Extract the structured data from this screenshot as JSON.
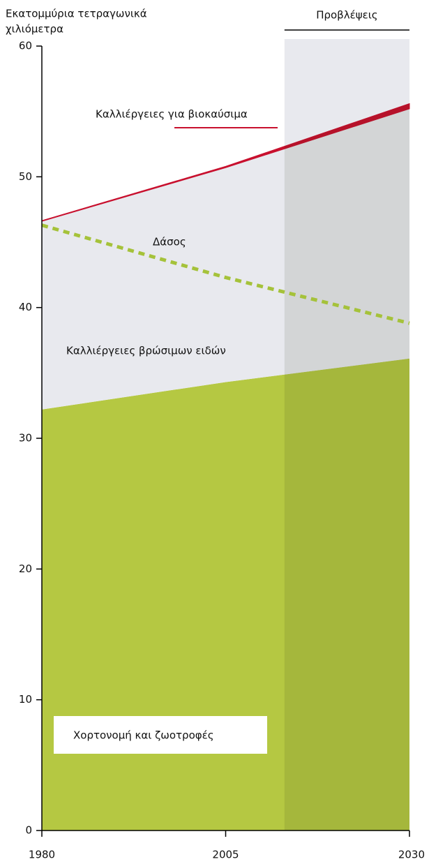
{
  "chart_data": {
    "type": "stacked_area",
    "y_label": [
      "Εκατομμύρια τετραγωνικά",
      "χιλιόμετρα"
    ],
    "projection_label": "Προβλέψεις",
    "projection_start": 2013,
    "x": [
      1980,
      2005,
      2030
    ],
    "series": [
      {
        "name": "Χορτονομή και ζωοτροφές",
        "color": "#b5c842",
        "values": [
          32.2,
          34.3,
          36.1
        ]
      },
      {
        "name": "Καλλιέργειες βρώσιμων ειδών",
        "color": "#e8e9ee",
        "values": [
          14.4,
          16.4,
          19.1
        ]
      },
      {
        "name": "Καλλιέργειες για βιοκαύσιμα",
        "color": "#c8102e",
        "values": [
          0.05,
          0.1,
          0.4
        ]
      }
    ],
    "lines": [
      {
        "name": "Δάσος",
        "color": "#a5c23a",
        "dashed": true,
        "values": [
          46.3,
          42.3,
          38.8
        ]
      }
    ],
    "xlim": [
      1980,
      2030
    ],
    "ylim": [
      0,
      60
    ],
    "xticks": [
      1980,
      2005,
      2030
    ],
    "yticks": [
      0,
      10,
      20,
      30,
      40,
      50,
      60
    ]
  }
}
